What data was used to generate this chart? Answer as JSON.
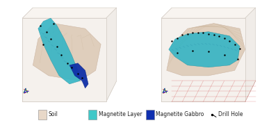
{
  "background_color": "#ffffff",
  "border_color": "#cccccc",
  "left_panel": {
    "bg_color": "#f5f0eb",
    "box_color": "#d0c8c0",
    "soil_color": "#dcc8b4",
    "magnetite_layer_color": "#35b5c5",
    "magnetite_gabbro_color": "#1030a8",
    "drill_hole_color": "#111111",
    "axis_color_x": "#cc3333",
    "axis_color_y": "#33aa33",
    "axis_color_z": "#3333cc"
  },
  "right_panel": {
    "bg_color": "#f5f0eb",
    "box_color": "#d0c8c0",
    "soil_color": "#dcc8b4",
    "magnetite_layer_color": "#35b5c5",
    "magnetite_gabbro_color": "#1030a8",
    "drill_hole_color": "#111111",
    "axis_color_x": "#cc3333",
    "axis_color_y": "#33aa33",
    "axis_color_z": "#3333cc"
  },
  "legend": {
    "soil_color": "#e8d8c8",
    "magnetite_layer_color": "#40c8c8",
    "magnetite_gabbro_color": "#1030b0",
    "drill_hole_color": "#111111",
    "labels": [
      "Soil",
      "Magnetite Layer",
      "Magnetite Gabbro",
      "Drill Hole"
    ],
    "fontsize": 5.5
  },
  "figure_bg": "#ffffff"
}
